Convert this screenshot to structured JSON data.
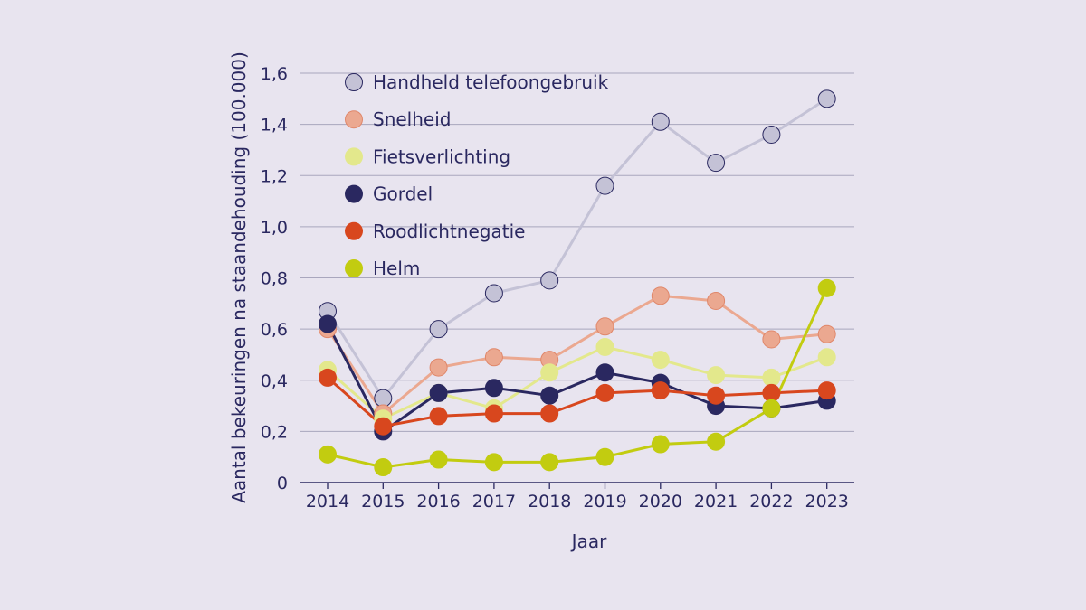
{
  "chart_data": {
    "type": "line",
    "title": "",
    "xlabel": "Jaar",
    "ylabel": "Aantal bekeuringen na staandehouding (100.000)",
    "x": [
      "2014",
      "2015",
      "2016",
      "2017",
      "2018",
      "2019",
      "2020",
      "2021",
      "2022",
      "2023"
    ],
    "ylim": [
      0,
      1.6
    ],
    "y_ticks": [
      0,
      0.2,
      0.4,
      0.6,
      0.8,
      1.0,
      1.2,
      1.4,
      1.6
    ],
    "y_tick_labels": [
      "0",
      "0,2",
      "0,4",
      "0,6",
      "0,8",
      "1,0",
      "1,2",
      "1,4",
      "1,6"
    ],
    "grid": "horizontal",
    "legend_position": "top-left",
    "series": [
      {
        "name": "Handheld telefoongebruik",
        "color": "#c4c2d6",
        "line_color": "#c4c2d6",
        "stroke": "#2a2860",
        "values": [
          0.67,
          0.33,
          0.6,
          0.74,
          0.79,
          1.16,
          1.41,
          1.25,
          1.36,
          1.5
        ]
      },
      {
        "name": "Snelheid",
        "color": "#eba890",
        "line_color": "#eba890",
        "stroke": "#e0876a",
        "values": [
          0.6,
          0.27,
          0.45,
          0.49,
          0.48,
          0.61,
          0.73,
          0.71,
          0.56,
          0.58
        ]
      },
      {
        "name": "Fietsverlichting",
        "color": "#e3e88c",
        "line_color": "#e3e88c",
        "stroke": "#e3e88c",
        "values": [
          0.44,
          0.25,
          0.35,
          0.29,
          0.43,
          0.53,
          0.48,
          0.42,
          0.41,
          0.49
        ]
      },
      {
        "name": "Gordel",
        "color": "#2a2860",
        "line_color": "#2a2860",
        "stroke": "#2a2860",
        "values": [
          0.62,
          0.2,
          0.35,
          0.37,
          0.34,
          0.43,
          0.39,
          0.3,
          0.29,
          0.32
        ]
      },
      {
        "name": "Roodlichtnegatie",
        "color": "#d8471e",
        "line_color": "#d8471e",
        "stroke": "#d8471e",
        "values": [
          0.41,
          0.22,
          0.26,
          0.27,
          0.27,
          0.35,
          0.36,
          0.34,
          0.35,
          0.36
        ]
      },
      {
        "name": "Helm",
        "color": "#c2cc10",
        "line_color": "#c2cc10",
        "stroke": "#c2cc10",
        "values": [
          0.11,
          0.06,
          0.09,
          0.08,
          0.08,
          0.1,
          0.15,
          0.16,
          0.29,
          0.76
        ]
      }
    ]
  }
}
